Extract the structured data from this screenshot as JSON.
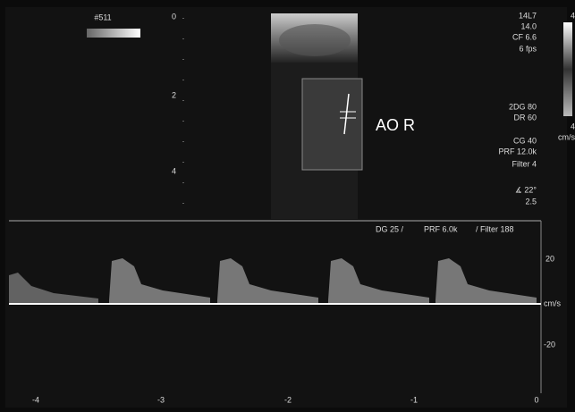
{
  "header": {
    "id": "#511"
  },
  "depth_scale": [
    "0",
    "2",
    "4"
  ],
  "settings_top": [
    "14L7",
    "14.0",
    "CF 6.6",
    "6 fps"
  ],
  "settings_color": [
    "2DG 80",
    "DR 60",
    "CG 40",
    "PRF 12.0k",
    "Filter 4",
    "∡ 22°",
    "2.5"
  ],
  "color_bar": [
    "4",
    "4",
    "cm/s"
  ],
  "label": "AO R",
  "doppler": {
    "settings": [
      "DG 25 /",
      "PRF 6.0k",
      "/ Filter 188"
    ],
    "velocity_scale": [
      "20",
      "cm/s",
      "-20"
    ],
    "time_scale": [
      "-4",
      "-3",
      "-2",
      "-1",
      "0"
    ]
  }
}
